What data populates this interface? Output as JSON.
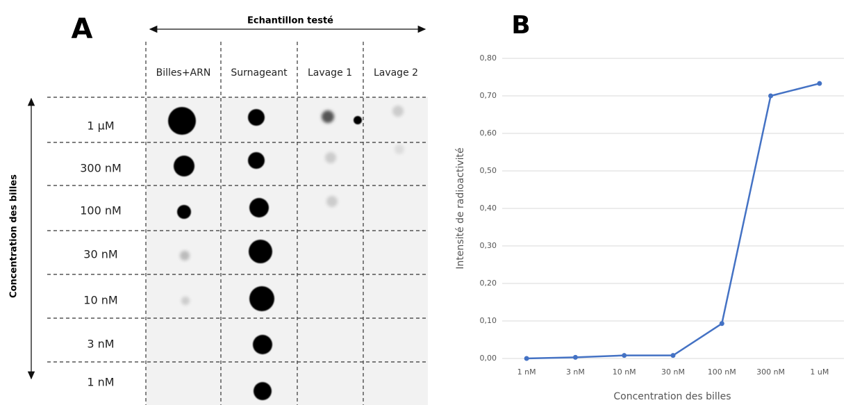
{
  "panel_a": {
    "label": "A",
    "title": "Echantillon testé",
    "columns": [
      "Billes+ARN",
      "Surnageant",
      "Lavage 1",
      "Lavage 2"
    ],
    "rows": [
      "1 µM",
      "300 nM",
      "100 nM",
      "30 nM",
      "10 nM",
      "3 nM",
      "1 nM"
    ],
    "y_label": "Concentration des billes"
  },
  "chart_data": {
    "type": "line",
    "panel_label": "B",
    "categories": [
      "1 nM",
      "3 nM",
      "10 nM",
      "30 nM",
      "100 nM",
      "300 nM",
      "1 uM"
    ],
    "values": [
      0.0,
      0.003,
      0.008,
      0.008,
      0.093,
      0.7,
      0.733
    ],
    "color": "#4472c4",
    "ylim": [
      0,
      0.8
    ],
    "yticks": [
      {
        "value": 0,
        "label": "0,00"
      },
      {
        "value": 0.1,
        "label": "0,10"
      },
      {
        "value": 0.2,
        "label": "0,20"
      },
      {
        "value": 0.3,
        "label": "0,30"
      },
      {
        "value": 0.4,
        "label": "0,40"
      },
      {
        "value": 0.5,
        "label": "0,50"
      },
      {
        "value": 0.6,
        "label": "0,60"
      },
      {
        "value": 0.7,
        "label": "0,70"
      },
      {
        "value": 0.8,
        "label": "0,80"
      }
    ],
    "grid": true,
    "x_label": "Concentration des billes",
    "y_label": "Intensité de radioactivité"
  }
}
